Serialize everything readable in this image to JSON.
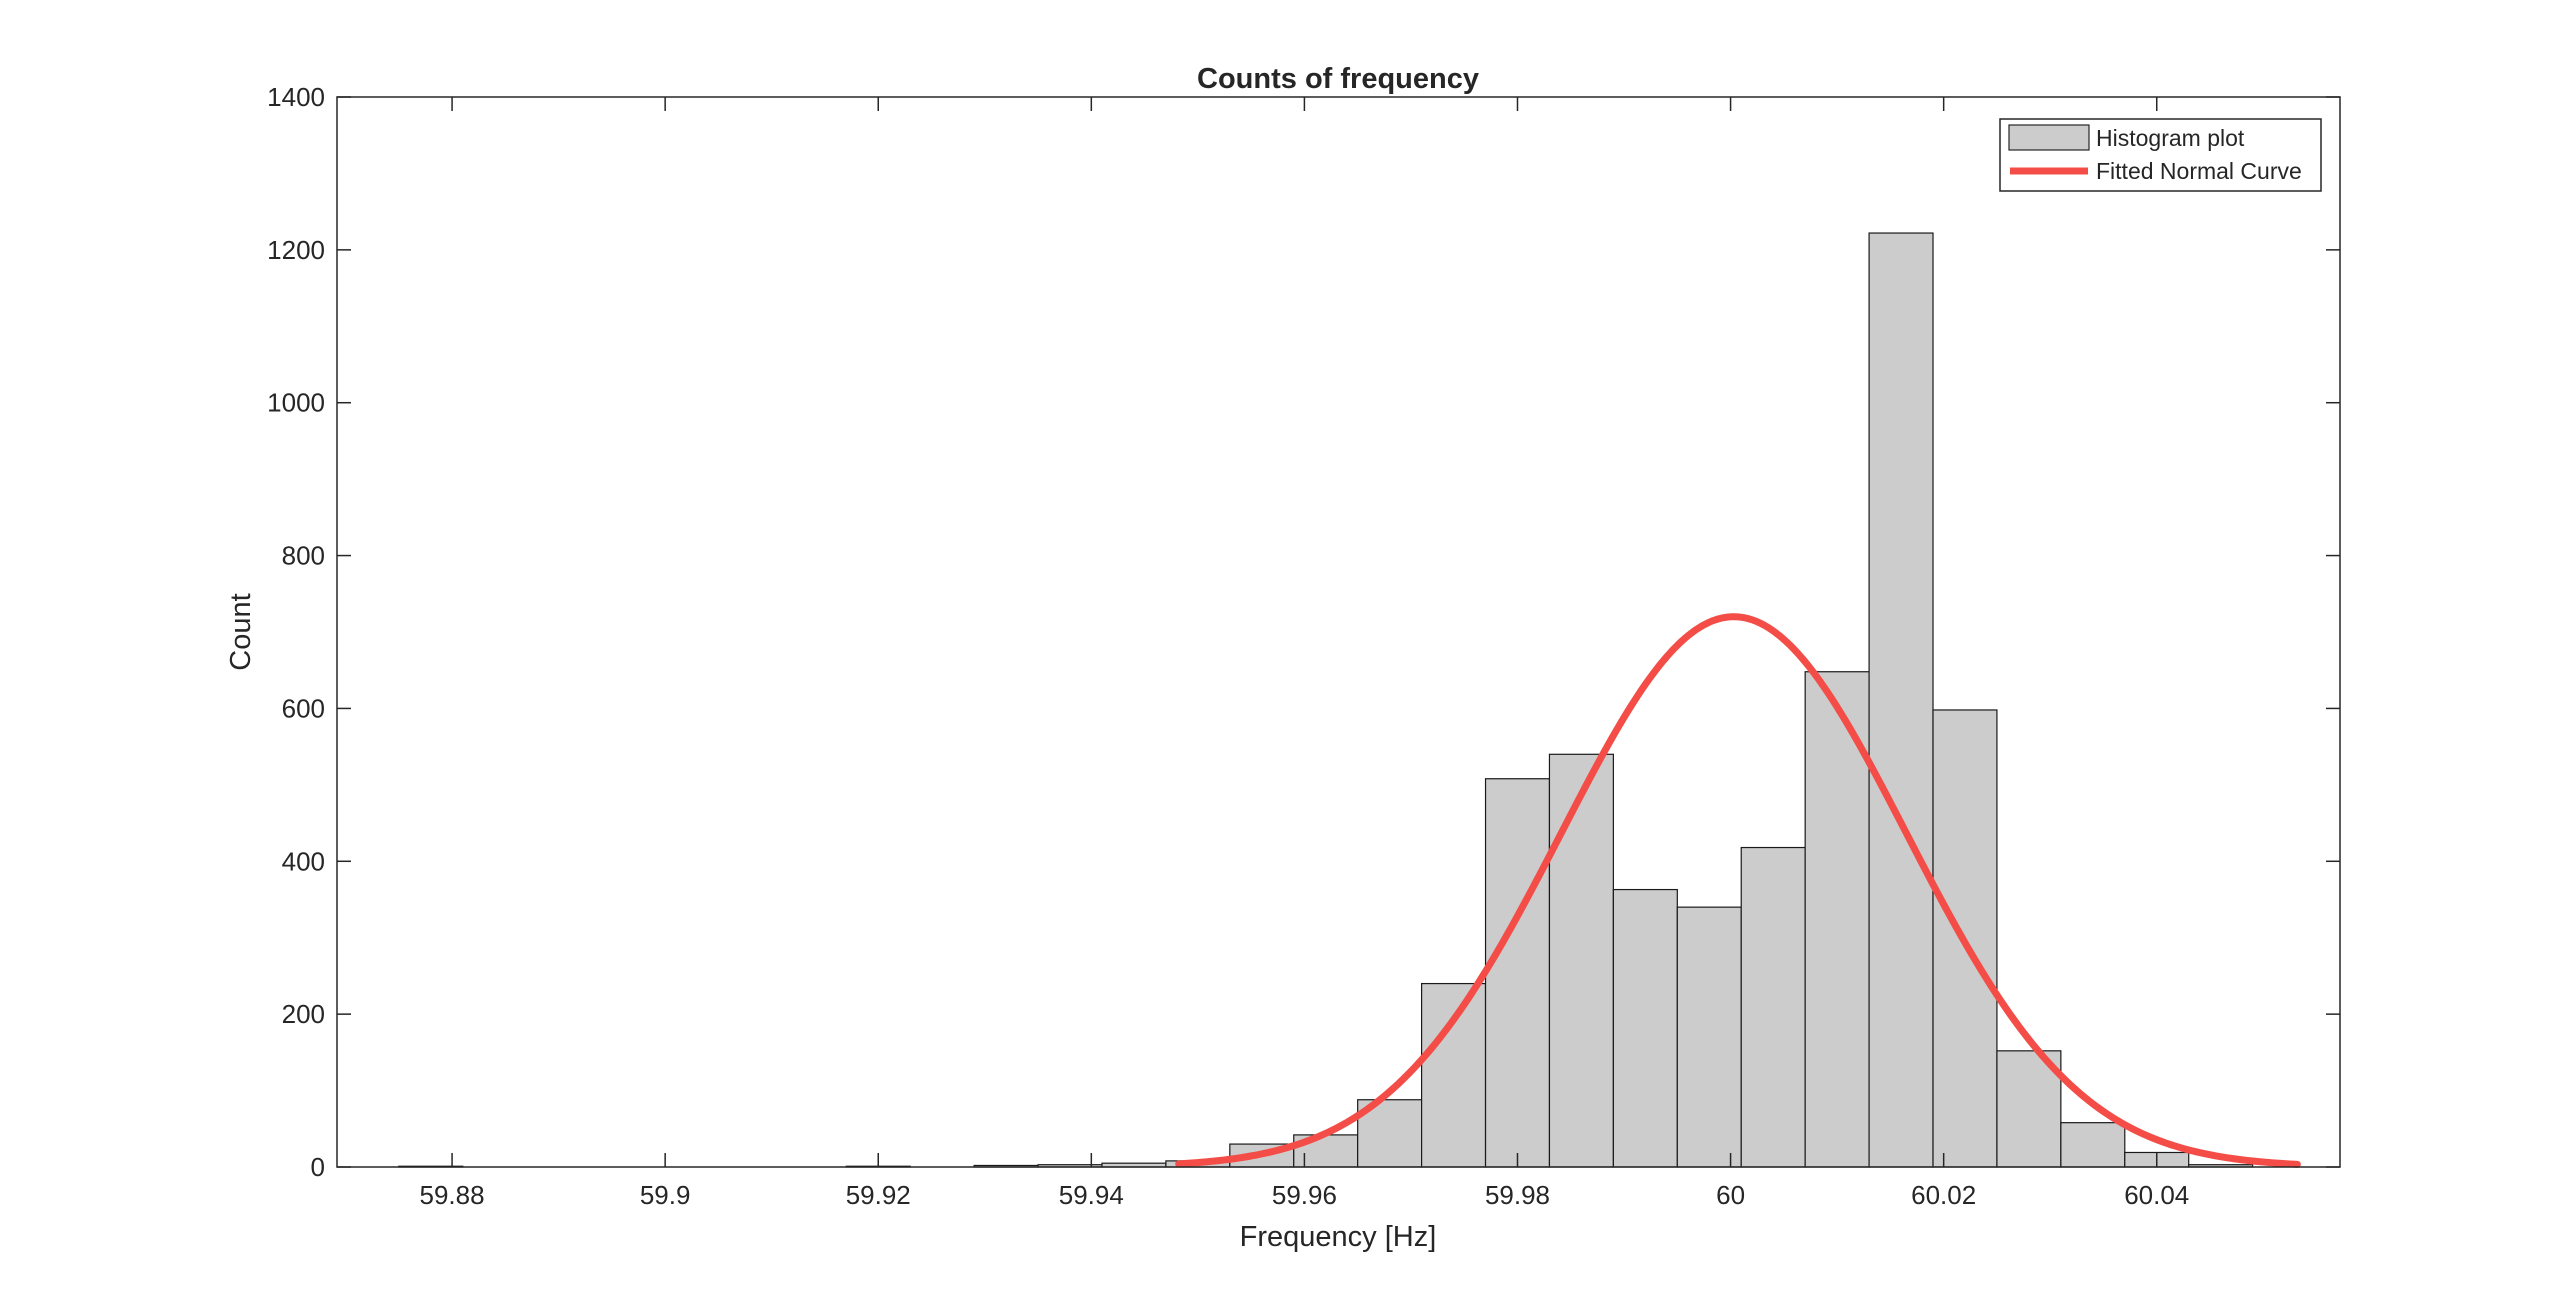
{
  "chart_data": {
    "type": "bar",
    "title": "Counts of frequency",
    "xlabel": "Frequency [Hz]",
    "ylabel": "Count",
    "xlim": [
      59.8692,
      60.0572
    ],
    "ylim": [
      0,
      1400
    ],
    "xticks": [
      59.88,
      59.9,
      59.92,
      59.94,
      59.96,
      59.98,
      60,
      60.02,
      60.04
    ],
    "xtick_labels": [
      "59.88",
      "59.9",
      "59.92",
      "59.94",
      "59.96",
      "59.98",
      "60",
      "60.02",
      "60.04"
    ],
    "yticks": [
      0,
      200,
      400,
      600,
      800,
      1000,
      1200,
      1400
    ],
    "ytick_labels": [
      "0",
      "200",
      "400",
      "600",
      "800",
      "1000",
      "1200",
      "1400"
    ],
    "grid": false,
    "legend_position": "top-right",
    "bin_width": 0.006,
    "histogram": {
      "name": "Histogram plot",
      "color": "#cccccc",
      "edge_color": "#1a1a1a",
      "bin_centers": [
        59.878,
        59.884,
        59.89,
        59.896,
        59.902,
        59.908,
        59.914,
        59.92,
        59.926,
        59.932,
        59.938,
        59.944,
        59.95,
        59.956,
        59.962,
        59.968,
        59.974,
        59.98,
        59.986,
        59.992,
        59.998,
        60.004,
        60.01,
        60.016,
        60.022,
        60.028,
        60.034,
        60.04,
        60.046
      ],
      "counts": [
        1,
        0,
        0,
        0,
        0,
        0,
        0,
        1,
        0,
        2,
        3,
        5,
        8,
        30,
        42,
        88,
        240,
        508,
        540,
        363,
        340,
        418,
        648,
        1222,
        598,
        152,
        58,
        19,
        3
      ]
    },
    "fit": {
      "name": "Fitted Normal Curve",
      "color": "#f44d47",
      "mu": 60.0003,
      "sigma": 0.0162,
      "peak": 720,
      "x_range": [
        59.9482,
        60.0532
      ]
    }
  }
}
